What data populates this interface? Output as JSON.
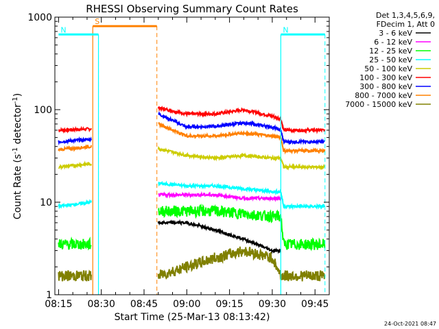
{
  "chart_data": {
    "type": "line",
    "title": "RHESSI Observing Summary Count Rates",
    "xlabel": "Start Time (25-Mar-13 08:13:42)",
    "ylabel": "Count Rate (s",
    "ylabel_sup1": "-1",
    "ylabel_mid": " detector",
    "ylabel_sup2": "-1",
    "ylabel_end": ")",
    "y_scale": "log",
    "ylim": [
      1,
      1000
    ],
    "xlim": [
      "08:13:42",
      "09:50:00"
    ],
    "x_ticks": [
      "08:15",
      "08:30",
      "08:45",
      "09:00",
      "09:15",
      "09:30",
      "09:45"
    ],
    "y_ticks": [
      "1",
      "10",
      "100",
      "1000"
    ],
    "legend": {
      "header_lines": [
        "Det 1,3,4,5,6,9,",
        "FDecim 1, Att 0"
      ],
      "entries": [
        {
          "label": "3 - 6 keV",
          "color": "#000000"
        },
        {
          "label": "6 - 12 keV",
          "color": "#ff00ff"
        },
        {
          "label": "12 - 25 keV",
          "color": "#00ff00"
        },
        {
          "label": "25 - 50 keV",
          "color": "#00ffff"
        },
        {
          "label": "50 - 100 keV",
          "color": "#cccc00"
        },
        {
          "label": "100 - 300 keV",
          "color": "#ff0000"
        },
        {
          "label": "300 - 800 keV",
          "color": "#0000ff"
        },
        {
          "label": "800 - 7000 keV",
          "color": "#ff8000"
        },
        {
          "label": "7000 - 15000 keV",
          "color": "#808000"
        }
      ]
    },
    "flags": [
      {
        "label": "S",
        "color": "#ff8000",
        "start": "08:27:00",
        "end": "08:49:30",
        "level": 800
      },
      {
        "label": "N",
        "color": "#00ffff",
        "start": "08:15:00",
        "end": "08:29:00",
        "level": 650
      },
      {
        "label": "N",
        "color": "#00ffff",
        "start": "09:33:00",
        "end": "09:48:30",
        "level": 650
      }
    ],
    "segments": [
      {
        "start": "08:15:00",
        "end": "08:26:30"
      },
      {
        "start": "08:50:00",
        "end": "09:48:30"
      }
    ],
    "series": [
      {
        "color": "#ff0000",
        "values": [
          [
            "08:15:00",
            60
          ],
          [
            "08:26:30",
            62
          ],
          [
            "08:50:00",
            105
          ],
          [
            "09:00:00",
            90
          ],
          [
            "09:10:00",
            90
          ],
          [
            "09:20:00",
            100
          ],
          [
            "09:30:00",
            85
          ],
          [
            "09:33:00",
            80
          ],
          [
            "09:34:00",
            60
          ],
          [
            "09:48:30",
            60
          ]
        ]
      },
      {
        "color": "#0000ff",
        "values": [
          [
            "08:15:00",
            45
          ],
          [
            "08:26:30",
            48
          ],
          [
            "08:50:00",
            90
          ],
          [
            "09:00:00",
            65
          ],
          [
            "09:10:00",
            66
          ],
          [
            "09:20:00",
            72
          ],
          [
            "09:30:00",
            65
          ],
          [
            "09:33:00",
            60
          ],
          [
            "09:34:00",
            45
          ],
          [
            "09:48:30",
            45
          ]
        ]
      },
      {
        "color": "#ff8000",
        "values": [
          [
            "08:15:00",
            37
          ],
          [
            "08:26:30",
            40
          ],
          [
            "08:50:00",
            70
          ],
          [
            "09:00:00",
            52
          ],
          [
            "09:10:00",
            52
          ],
          [
            "09:20:00",
            56
          ],
          [
            "09:30:00",
            52
          ],
          [
            "09:33:00",
            50
          ],
          [
            "09:34:00",
            36
          ],
          [
            "09:48:30",
            36
          ]
        ]
      },
      {
        "color": "#cccc00",
        "values": [
          [
            "08:15:00",
            24
          ],
          [
            "08:26:30",
            26
          ],
          [
            "08:50:00",
            38
          ],
          [
            "09:00:00",
            32
          ],
          [
            "09:10:00",
            30
          ],
          [
            "09:20:00",
            32
          ],
          [
            "09:30:00",
            30
          ],
          [
            "09:33:00",
            30
          ],
          [
            "09:34:00",
            24
          ],
          [
            "09:48:30",
            24
          ]
        ]
      },
      {
        "color": "#00ffff",
        "values": [
          [
            "08:15:00",
            9
          ],
          [
            "08:26:30",
            10
          ],
          [
            "08:50:00",
            16
          ],
          [
            "09:00:00",
            15
          ],
          [
            "09:10:00",
            15
          ],
          [
            "09:20:00",
            14
          ],
          [
            "09:30:00",
            13
          ],
          [
            "09:33:00",
            13
          ],
          [
            "09:34:00",
            9
          ],
          [
            "09:48:30",
            9
          ]
        ]
      },
      {
        "color": "#ff00ff",
        "values": [
          [
            "08:50:00",
            12
          ],
          [
            "09:00:00",
            12
          ],
          [
            "09:10:00",
            12
          ],
          [
            "09:20:00",
            11
          ],
          [
            "09:30:00",
            11
          ],
          [
            "09:33:00",
            11
          ]
        ]
      },
      {
        "color": "#00ff00",
        "values": [
          [
            "08:15:00",
            3.5
          ],
          [
            "08:26:30",
            3.5
          ],
          [
            "08:50:00",
            8
          ],
          [
            "09:00:00",
            8
          ],
          [
            "09:10:00",
            8
          ],
          [
            "09:20:00",
            7.5
          ],
          [
            "09:30:00",
            7
          ],
          [
            "09:33:00",
            7
          ],
          [
            "09:34:00",
            3.5
          ],
          [
            "09:48:30",
            3.5
          ]
        ]
      },
      {
        "color": "#000000",
        "values": [
          [
            "08:50:00",
            6
          ],
          [
            "09:00:00",
            6
          ],
          [
            "09:10:00",
            5
          ],
          [
            "09:20:00",
            4
          ],
          [
            "09:30:00",
            3
          ],
          [
            "09:33:00",
            3
          ]
        ]
      },
      {
        "color": "#808000",
        "values": [
          [
            "08:15:00",
            1.6
          ],
          [
            "08:26:30",
            1.6
          ],
          [
            "08:50:00",
            1.6
          ],
          [
            "09:10:00",
            2.5
          ],
          [
            "09:20:00",
            3
          ],
          [
            "09:30:00",
            2.5
          ],
          [
            "09:33:00",
            1.6
          ],
          [
            "09:48:30",
            1.6
          ]
        ]
      }
    ]
  },
  "footer_timestamp": "24-Oct-2021 08:47"
}
